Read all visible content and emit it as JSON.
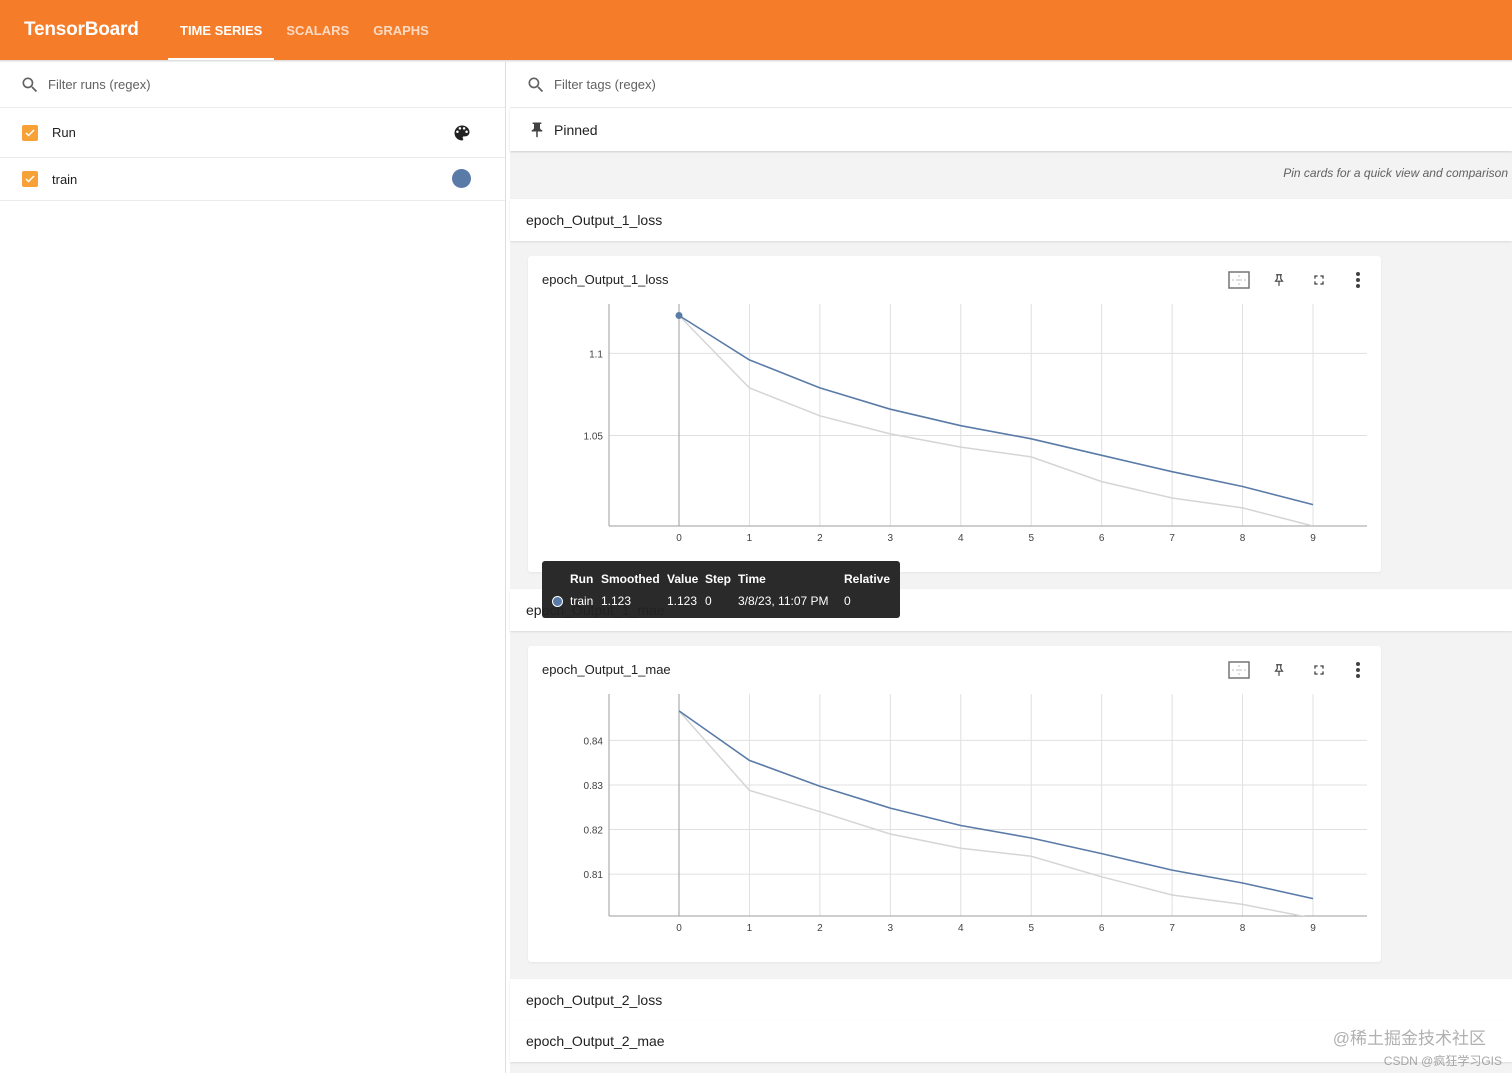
{
  "app": {
    "brand": "TensorBoard",
    "tabs": [
      {
        "label": "TIME SERIES",
        "active": true
      },
      {
        "label": "SCALARS",
        "active": false
      },
      {
        "label": "GRAPHS",
        "active": false
      }
    ],
    "accent": "#f57c29"
  },
  "sidebar": {
    "filter_placeholder": "Filter runs (regex)",
    "rows": [
      {
        "label": "Run",
        "checked": true,
        "trailing_icon": "palette-icon"
      },
      {
        "label": "train",
        "checked": true,
        "color": "#5a7ba8"
      }
    ]
  },
  "main": {
    "filter_placeholder": "Filter tags (regex)",
    "pinned_label": "Pinned",
    "pin_hint": "Pin cards for a quick view and comparison",
    "groups": [
      {
        "label": "epoch_Output_1_loss"
      },
      {
        "label": "epoch_Output_1_mae"
      },
      {
        "label": "epoch_Output_2_loss"
      },
      {
        "label": "epoch_Output_2_mae"
      }
    ],
    "cards": [
      {
        "title": "epoch_Output_1_loss",
        "tools": [
          "fit-domain-icon",
          "pin-icon",
          "fullscreen-icon",
          "more-vert-icon"
        ]
      },
      {
        "title": "epoch_Output_1_mae",
        "tools": [
          "fit-domain-icon",
          "pin-icon",
          "fullscreen-icon",
          "more-vert-icon"
        ]
      }
    ]
  },
  "tooltip": {
    "headers": [
      "Run",
      "Smoothed",
      "Value",
      "Step",
      "Time",
      "Relative"
    ],
    "row": {
      "run": "train",
      "smoothed": "1.123",
      "value": "1.123",
      "step": "0",
      "time": "3/8/23, 11:07 PM",
      "relative": "0"
    }
  },
  "chart_data": [
    {
      "type": "line",
      "title": "epoch_Output_1_loss",
      "x_ticks": [
        "0",
        "1",
        "2",
        "3",
        "4",
        "5",
        "6",
        "7",
        "8",
        "9"
      ],
      "y_ticks": [
        "1.1",
        "1.05"
      ],
      "xlim": [
        0,
        9
      ],
      "ylim": [
        0.995,
        1.13
      ],
      "grid": true,
      "series": [
        {
          "name": "train",
          "style": "smoothed",
          "color": "#5a7ba8",
          "x": [
            0,
            1,
            2,
            3,
            4,
            5,
            6,
            7,
            8,
            9
          ],
          "y": [
            1.123,
            1.096,
            1.079,
            1.066,
            1.056,
            1.048,
            1.038,
            1.028,
            1.019,
            1.008
          ]
        },
        {
          "name": "train",
          "style": "raw",
          "color": "#d5d5d5",
          "x": [
            0,
            1,
            2,
            3,
            4,
            5,
            6,
            7,
            8,
            9
          ],
          "y": [
            1.123,
            1.079,
            1.062,
            1.051,
            1.043,
            1.037,
            1.022,
            1.012,
            1.006,
            0.995
          ]
        }
      ]
    },
    {
      "type": "line",
      "title": "epoch_Output_1_mae",
      "x_ticks": [
        "0",
        "1",
        "2",
        "3",
        "4",
        "5",
        "6",
        "7",
        "8",
        "9"
      ],
      "y_ticks": [
        "0.84",
        "0.83",
        "0.82",
        "0.81"
      ],
      "xlim": [
        0,
        9
      ],
      "ylim": [
        0.8006,
        0.8504
      ],
      "grid": true,
      "series": [
        {
          "name": "train",
          "style": "smoothed",
          "color": "#5a7ba8",
          "x": [
            0,
            1,
            2,
            3,
            4,
            5,
            6,
            7,
            8,
            9
          ],
          "y": [
            0.8466,
            0.8355,
            0.8297,
            0.8248,
            0.8209,
            0.8181,
            0.8146,
            0.8109,
            0.808,
            0.8045
          ]
        },
        {
          "name": "train",
          "style": "raw",
          "color": "#d5d5d5",
          "x": [
            0,
            1,
            2,
            3,
            4,
            5,
            6,
            7,
            8,
            9
          ],
          "y": [
            0.8466,
            0.8288,
            0.824,
            0.819,
            0.8158,
            0.814,
            0.8094,
            0.8053,
            0.8032,
            0.8001
          ]
        }
      ]
    }
  ],
  "watermarks": {
    "line1": "@稀土掘金技术社区",
    "line2": "CSDN @疯狂学习GIS"
  }
}
